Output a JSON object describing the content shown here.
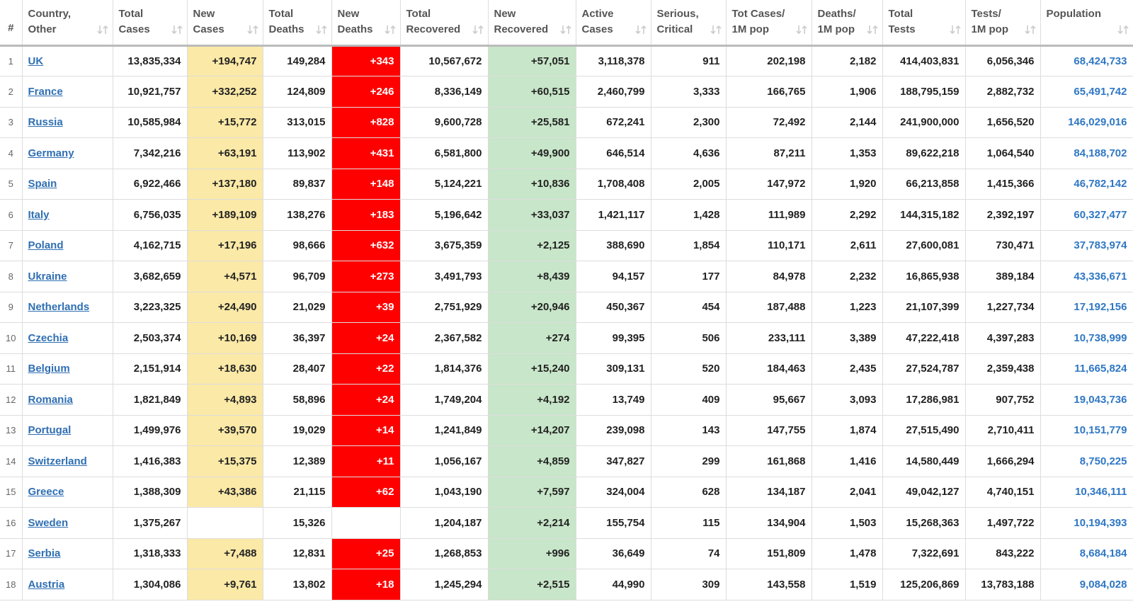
{
  "table": {
    "headers": [
      [
        "#"
      ],
      [
        "Country,",
        "Other"
      ],
      [
        "Total",
        "Cases"
      ],
      [
        "New",
        "Cases"
      ],
      [
        "Total",
        "Deaths"
      ],
      [
        "New",
        "Deaths"
      ],
      [
        "Total",
        "Recovered"
      ],
      [
        "New",
        "Recovered"
      ],
      [
        "Active",
        "Cases"
      ],
      [
        "Serious,",
        "Critical"
      ],
      [
        "Tot Cases/",
        "1M pop"
      ],
      [
        "Deaths/",
        "1M pop"
      ],
      [
        "Total",
        "Tests"
      ],
      [
        "Tests/",
        "1M pop"
      ],
      [
        "Population"
      ]
    ],
    "rows": [
      [
        "1",
        "UK",
        "13,835,334",
        "+194,747",
        "149,284",
        "+343",
        "10,567,672",
        "+57,051",
        "3,118,378",
        "911",
        "202,198",
        "2,182",
        "414,403,831",
        "6,056,346",
        "68,424,733"
      ],
      [
        "2",
        "France",
        "10,921,757",
        "+332,252",
        "124,809",
        "+246",
        "8,336,149",
        "+60,515",
        "2,460,799",
        "3,333",
        "166,765",
        "1,906",
        "188,795,159",
        "2,882,732",
        "65,491,742"
      ],
      [
        "3",
        "Russia",
        "10,585,984",
        "+15,772",
        "313,015",
        "+828",
        "9,600,728",
        "+25,581",
        "672,241",
        "2,300",
        "72,492",
        "2,144",
        "241,900,000",
        "1,656,520",
        "146,029,016"
      ],
      [
        "4",
        "Germany",
        "7,342,216",
        "+63,191",
        "113,902",
        "+431",
        "6,581,800",
        "+49,900",
        "646,514",
        "4,636",
        "87,211",
        "1,353",
        "89,622,218",
        "1,064,540",
        "84,188,702"
      ],
      [
        "5",
        "Spain",
        "6,922,466",
        "+137,180",
        "89,837",
        "+148",
        "5,124,221",
        "+10,836",
        "1,708,408",
        "2,005",
        "147,972",
        "1,920",
        "66,213,858",
        "1,415,366",
        "46,782,142"
      ],
      [
        "6",
        "Italy",
        "6,756,035",
        "+189,109",
        "138,276",
        "+183",
        "5,196,642",
        "+33,037",
        "1,421,117",
        "1,428",
        "111,989",
        "2,292",
        "144,315,182",
        "2,392,197",
        "60,327,477"
      ],
      [
        "7",
        "Poland",
        "4,162,715",
        "+17,196",
        "98,666",
        "+632",
        "3,675,359",
        "+2,125",
        "388,690",
        "1,854",
        "110,171",
        "2,611",
        "27,600,081",
        "730,471",
        "37,783,974"
      ],
      [
        "8",
        "Ukraine",
        "3,682,659",
        "+4,571",
        "96,709",
        "+273",
        "3,491,793",
        "+8,439",
        "94,157",
        "177",
        "84,978",
        "2,232",
        "16,865,938",
        "389,184",
        "43,336,671"
      ],
      [
        "9",
        "Netherlands",
        "3,223,325",
        "+24,490",
        "21,029",
        "+39",
        "2,751,929",
        "+20,946",
        "450,367",
        "454",
        "187,488",
        "1,223",
        "21,107,399",
        "1,227,734",
        "17,192,156"
      ],
      [
        "10",
        "Czechia",
        "2,503,374",
        "+10,169",
        "36,397",
        "+24",
        "2,367,582",
        "+274",
        "99,395",
        "506",
        "233,111",
        "3,389",
        "47,222,418",
        "4,397,283",
        "10,738,999"
      ],
      [
        "11",
        "Belgium",
        "2,151,914",
        "+18,630",
        "28,407",
        "+22",
        "1,814,376",
        "+15,240",
        "309,131",
        "520",
        "184,463",
        "2,435",
        "27,524,787",
        "2,359,438",
        "11,665,824"
      ],
      [
        "12",
        "Romania",
        "1,821,849",
        "+4,893",
        "58,896",
        "+24",
        "1,749,204",
        "+4,192",
        "13,749",
        "409",
        "95,667",
        "3,093",
        "17,286,981",
        "907,752",
        "19,043,736"
      ],
      [
        "13",
        "Portugal",
        "1,499,976",
        "+39,570",
        "19,029",
        "+14",
        "1,241,849",
        "+14,207",
        "239,098",
        "143",
        "147,755",
        "1,874",
        "27,515,490",
        "2,710,411",
        "10,151,779"
      ],
      [
        "14",
        "Switzerland",
        "1,416,383",
        "+15,375",
        "12,389",
        "+11",
        "1,056,167",
        "+4,859",
        "347,827",
        "299",
        "161,868",
        "1,416",
        "14,580,449",
        "1,666,294",
        "8,750,225"
      ],
      [
        "15",
        "Greece",
        "1,388,309",
        "+43,386",
        "21,115",
        "+62",
        "1,043,190",
        "+7,597",
        "324,004",
        "628",
        "134,187",
        "2,041",
        "49,042,127",
        "4,740,151",
        "10,346,111"
      ],
      [
        "16",
        "Sweden",
        "1,375,267",
        null,
        "15,326",
        null,
        "1,204,187",
        "+2,214",
        "155,754",
        "115",
        "134,904",
        "1,503",
        "15,268,363",
        "1,497,722",
        "10,194,393"
      ],
      [
        "17",
        "Serbia",
        "1,318,333",
        "+7,488",
        "12,831",
        "+25",
        "1,268,853",
        "+996",
        "36,649",
        "74",
        "151,809",
        "1,478",
        "7,322,691",
        "843,222",
        "8,684,184"
      ],
      [
        "18",
        "Austria",
        "1,304,086",
        "+9,761",
        "13,802",
        "+18",
        "1,245,294",
        "+2,515",
        "44,990",
        "309",
        "143,558",
        "1,519",
        "125,206,869",
        "13,783,188",
        "9,084,028"
      ]
    ]
  }
}
